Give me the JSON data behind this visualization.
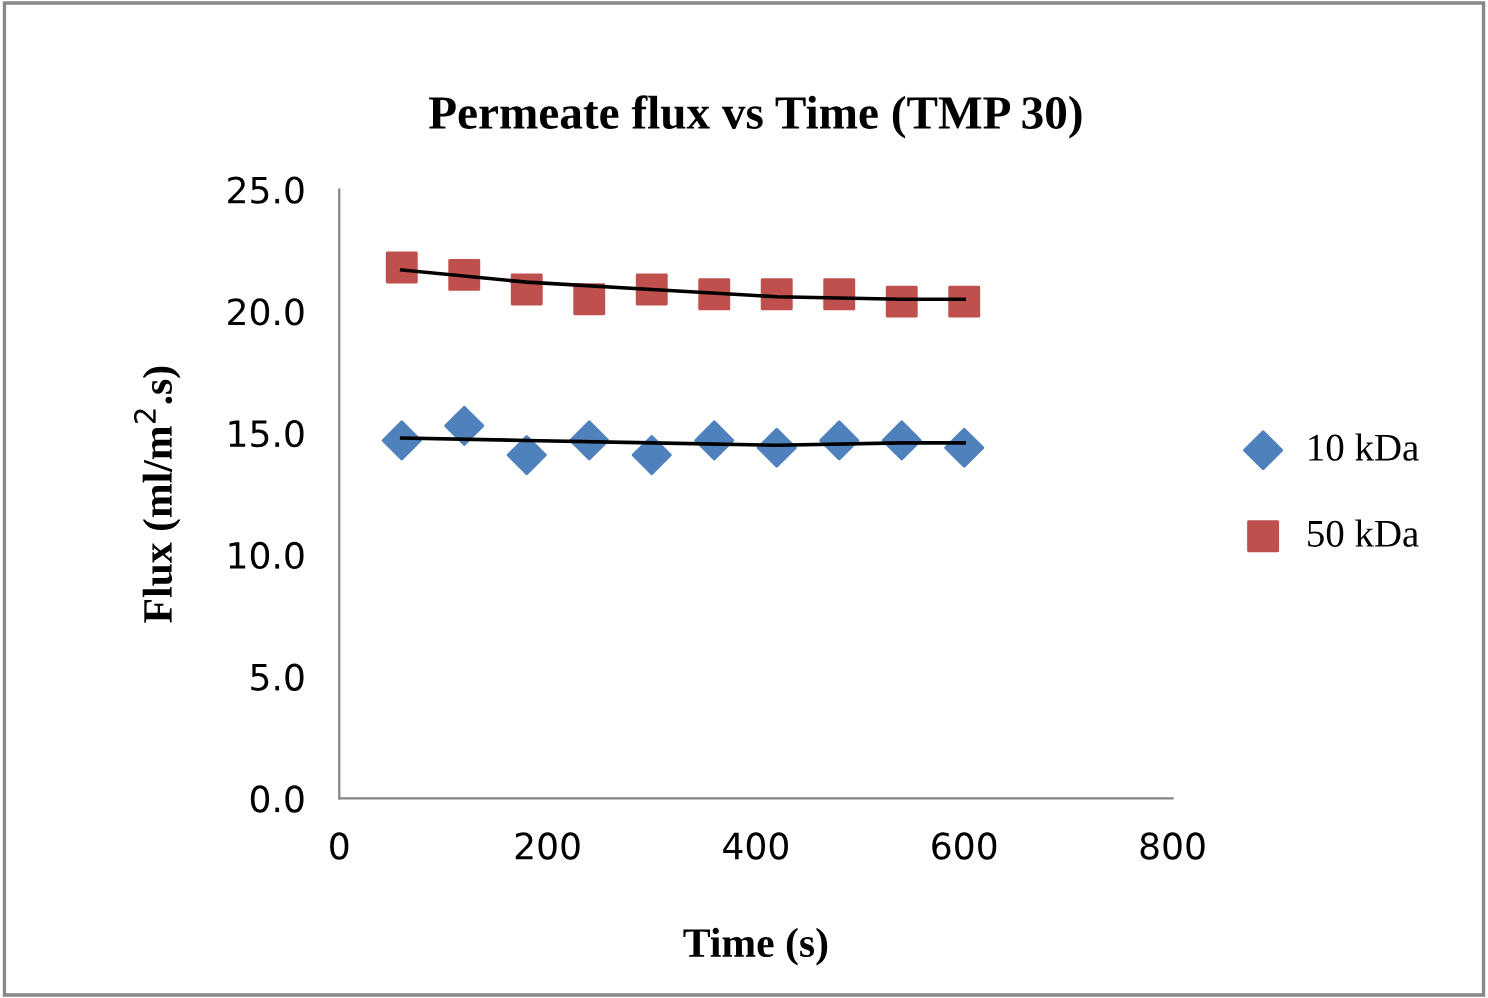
{
  "chart_data": {
    "type": "scatter",
    "title": "Permeate flux vs Time (TMP 30)",
    "xlabel": "Time (s)",
    "ylabel": "Flux (ml/m$^{2}$.s)",
    "x": [
      60,
      120,
      180,
      240,
      300,
      360,
      420,
      480,
      540,
      600
    ],
    "series": [
      {
        "name": "10 kDa",
        "color": "#4f81bd",
        "marker": "diamond",
        "values": [
          14.7,
          15.3,
          14.1,
          14.7,
          14.1,
          14.7,
          14.4,
          14.7,
          14.7,
          14.4
        ]
      },
      {
        "name": "50 kDa",
        "color": "#c0504d",
        "marker": "square",
        "values": [
          21.8,
          21.5,
          20.9,
          20.5,
          20.9,
          20.7,
          20.7,
          20.7,
          20.4,
          20.4
        ]
      },
      {
        "type": "line",
        "color": "#000000",
        "x": [
          60,
          180,
          300,
          420,
          540,
          600
        ],
        "values": [
          14.8,
          14.7,
          14.6,
          14.5,
          14.6,
          14.6
        ]
      },
      {
        "type": "line",
        "color": "#000000",
        "x": [
          60,
          180,
          300,
          420,
          540,
          600
        ],
        "values": [
          21.7,
          21.2,
          20.9,
          20.6,
          20.5,
          20.5
        ]
      }
    ],
    "xlim": [
      0,
      800
    ],
    "xticks": [
      0,
      200,
      400,
      600,
      800
    ],
    "ylim": [
      0,
      25
    ],
    "yticks": [
      {
        "value": 0,
        "label": "0.0"
      },
      {
        "value": 5,
        "label": "5.0"
      },
      {
        "value": 10,
        "label": "10.0"
      },
      {
        "value": 15,
        "label": "15.0"
      },
      {
        "value": 20,
        "label": "20.0"
      },
      {
        "value": 25,
        "label": "25.0"
      }
    ],
    "grid": false,
    "legend": "right"
  }
}
